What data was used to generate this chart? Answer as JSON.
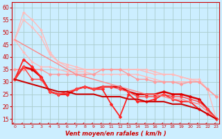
{
  "title": "",
  "xlabel": "Vent moyen/en rafales ( km/h )",
  "ylabel": "",
  "bg_color": "#cceeff",
  "grid_color": "#aacccc",
  "x": [
    0,
    1,
    2,
    3,
    4,
    5,
    6,
    7,
    8,
    9,
    10,
    11,
    12,
    13,
    14,
    15,
    16,
    17,
    18,
    19,
    20,
    21,
    22,
    23
  ],
  "series": [
    {
      "y": [
        47,
        58,
        55,
        51,
        42,
        38,
        37,
        36,
        35,
        35,
        35,
        35,
        35,
        35,
        35,
        35,
        34,
        33,
        33,
        32,
        31,
        31,
        27,
        15
      ],
      "color": "#ffbbbb",
      "lw": 1.0,
      "marker": "D",
      "ms": 2.0
    },
    {
      "y": [
        47,
        55,
        52,
        48,
        41,
        38,
        36,
        35,
        35,
        35,
        35,
        35,
        35,
        35,
        35,
        34,
        33,
        33,
        33,
        32,
        31,
        30,
        27,
        24
      ],
      "color": "#ffbbbb",
      "lw": 1.0,
      "marker": "D",
      "ms": 2.0
    },
    {
      "y": [
        47,
        42,
        38,
        36,
        36,
        35,
        34,
        34,
        34,
        33,
        33,
        33,
        33,
        33,
        33,
        32,
        31,
        30,
        30,
        30,
        30,
        30,
        27,
        24
      ],
      "color": "#ffbbbb",
      "lw": 1.0,
      "marker": "D",
      "ms": 2.0
    },
    {
      "y": [
        35,
        35,
        35,
        35,
        33,
        33,
        33,
        33,
        33,
        33,
        35,
        35,
        35,
        33,
        31,
        31,
        30,
        30,
        30,
        29,
        30,
        30,
        27,
        24
      ],
      "color": "#ff9999",
      "lw": 1.0,
      "marker": "D",
      "ms": 2.5
    },
    {
      "y": [
        31,
        36,
        35,
        32,
        26,
        25,
        25,
        27,
        28,
        27,
        28,
        28,
        28,
        26,
        25,
        25,
        25,
        26,
        25,
        25,
        24,
        23,
        19,
        15
      ],
      "color": "#dd0000",
      "lw": 1.8,
      "marker": "D",
      "ms": 2.5
    },
    {
      "y": [
        31,
        39,
        36,
        32,
        26,
        25,
        25,
        27,
        28,
        27,
        27,
        21,
        16,
        25,
        22,
        22,
        23,
        25,
        23,
        22,
        22,
        19,
        17,
        15
      ],
      "color": "#ff2222",
      "lw": 1.3,
      "marker": "D",
      "ms": 2.5
    },
    {
      "y": [
        31,
        36,
        31,
        31,
        26,
        25,
        26,
        27,
        28,
        27,
        28,
        28,
        27,
        26,
        24,
        24,
        24,
        25,
        24,
        24,
        23,
        22,
        19,
        15
      ],
      "color": "#ff4444",
      "lw": 1.0,
      "marker": "D",
      "ms": 2.5
    },
    {
      "y": [
        47,
        45,
        43,
        41,
        39,
        37,
        35,
        33,
        32,
        31,
        30,
        29,
        28,
        27,
        26,
        25,
        25,
        24,
        23,
        23,
        22,
        21,
        18,
        15
      ],
      "color": "#ff8888",
      "lw": 1.0,
      "marker": null,
      "ms": 0
    },
    {
      "y": [
        31,
        30,
        29,
        28,
        27,
        26,
        26,
        25,
        25,
        25,
        24,
        24,
        24,
        23,
        23,
        22,
        22,
        22,
        21,
        21,
        20,
        19,
        17,
        15
      ],
      "color": "#cc0000",
      "lw": 1.5,
      "marker": null,
      "ms": 0
    }
  ],
  "ylim": [
    13,
    62
  ],
  "yticks": [
    15,
    20,
    25,
    30,
    35,
    40,
    45,
    50,
    55,
    60
  ],
  "xlim": [
    -0.3,
    23.3
  ],
  "xticks": [
    0,
    1,
    2,
    3,
    4,
    5,
    6,
    7,
    8,
    9,
    10,
    11,
    12,
    13,
    14,
    15,
    16,
    17,
    18,
    19,
    20,
    21,
    22,
    23
  ],
  "xlabel_color": "#cc0000",
  "tick_color": "#cc0000",
  "axis_color": "#cc0000"
}
